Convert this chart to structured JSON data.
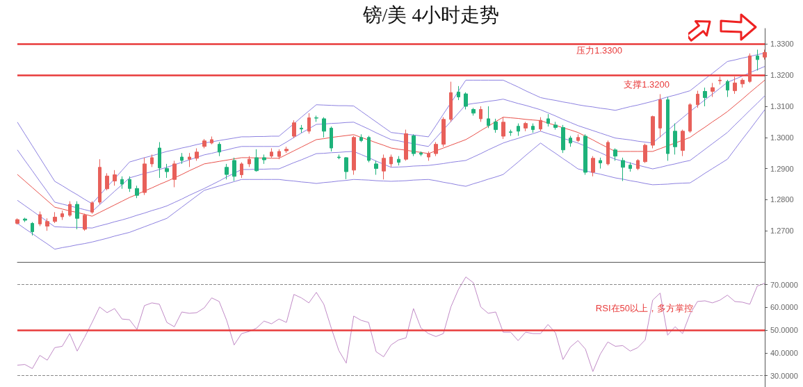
{
  "chart_data": [
    {
      "type": "candlestick",
      "title": "镑/美 4小时走势",
      "tick_labels": "y",
      "marker": "none",
      "categories": [
        null,
        null,
        null,
        null,
        null,
        null,
        null,
        null,
        null,
        null,
        null,
        null,
        null,
        null,
        null,
        null,
        null,
        null,
        null,
        null,
        null,
        null,
        null,
        null,
        null,
        null,
        null,
        null,
        null,
        null,
        null,
        null,
        null,
        null,
        null,
        null,
        null,
        null,
        null,
        null,
        null,
        null,
        null,
        null,
        null,
        null,
        null,
        null,
        null,
        null,
        null,
        null,
        null,
        null,
        null,
        null,
        null,
        null,
        null,
        null,
        null,
        null,
        null,
        null,
        null,
        null,
        null,
        null,
        null,
        null,
        null,
        null,
        null,
        null,
        null,
        null,
        null,
        null,
        null,
        null,
        null,
        null,
        null,
        null,
        null,
        null,
        null,
        null,
        null,
        null,
        null,
        null,
        null,
        null,
        null,
        null,
        null,
        null,
        null,
        null,
        null
      ],
      "ohlc": [
        [
          1.2724,
          1.274,
          1.272,
          1.2736
        ],
        [
          1.2738,
          1.2742,
          1.2728,
          1.2734
        ],
        [
          1.2724,
          1.2728,
          1.2685,
          1.2697
        ],
        [
          1.2722,
          1.2762,
          1.2715,
          1.2752
        ],
        [
          1.2715,
          1.274,
          1.27,
          1.273
        ],
        [
          1.273,
          1.276,
          1.2725,
          1.2744
        ],
        [
          1.2745,
          1.2765,
          1.2735,
          1.2755
        ],
        [
          1.275,
          1.2795,
          1.2745,
          1.2785
        ],
        [
          1.2785,
          1.2795,
          1.2705,
          1.274
        ],
        [
          1.2705,
          1.2755,
          1.27,
          1.275
        ],
        [
          1.276,
          1.2795,
          1.2755,
          1.279
        ],
        [
          1.2792,
          1.293,
          1.2785,
          1.2904
        ],
        [
          1.2835,
          1.2885,
          1.283,
          1.2876
        ],
        [
          1.286,
          1.2895,
          1.2845,
          1.288
        ],
        [
          1.2865,
          1.2875,
          1.2835,
          1.285
        ],
        [
          1.2865,
          1.2875,
          1.2825,
          1.2836
        ],
        [
          1.2836,
          1.2845,
          1.2805,
          1.2814
        ],
        [
          1.2823,
          1.2935,
          1.2815,
          1.2915
        ],
        [
          1.2915,
          1.2945,
          1.2905,
          1.2935
        ],
        [
          1.2966,
          1.2985,
          1.287,
          1.2902
        ],
        [
          1.29,
          1.2915,
          1.287,
          1.289
        ],
        [
          1.2865,
          1.2925,
          1.284,
          1.2915
        ],
        [
          1.2937,
          1.295,
          1.2915,
          1.2926
        ],
        [
          1.293,
          1.295,
          1.2905,
          1.2937
        ],
        [
          1.2933,
          1.2965,
          1.2925,
          1.2953
        ],
        [
          1.2971,
          1.2995,
          1.2965,
          1.2989
        ],
        [
          1.2982,
          1.3003,
          1.2978,
          1.2993
        ],
        [
          1.2978,
          1.2985,
          1.294,
          1.2953
        ],
        [
          1.2904,
          1.2915,
          1.2865,
          1.2881
        ],
        [
          1.2926,
          1.2935,
          1.286,
          1.2875
        ],
        [
          1.288,
          1.292,
          1.287,
          1.2915
        ],
        [
          1.2915,
          1.294,
          1.2905,
          1.293
        ],
        [
          1.2935,
          1.2962,
          1.289,
          1.2893
        ],
        [
          1.2935,
          1.2945,
          1.2915,
          1.2928
        ],
        [
          1.294,
          1.2965,
          1.2935,
          1.2953
        ],
        [
          1.2939,
          1.2962,
          1.293,
          1.2955
        ],
        [
          1.2957,
          1.297,
          1.295,
          1.2962
        ],
        [
          1.3004,
          1.3055,
          1.2998,
          1.3047
        ],
        [
          1.303,
          1.304,
          1.3015,
          1.3027
        ],
        [
          1.302,
          1.3078,
          1.3012,
          1.3063
        ],
        [
          1.3063,
          1.307,
          1.305,
          1.3062
        ],
        [
          1.306,
          1.3065,
          1.3,
          1.302
        ],
        [
          1.303,
          1.3035,
          1.2955,
          1.2966
        ],
        [
          1.2937,
          1.2945,
          1.293,
          1.2935
        ],
        [
          1.2935,
          1.2937,
          1.2866,
          1.289
        ],
        [
          1.2895,
          1.3005,
          1.288,
          1.3
        ],
        [
          1.3,
          1.301,
          1.2985,
          1.299
        ],
        [
          1.3,
          1.3005,
          1.292,
          1.2926
        ],
        [
          1.2915,
          1.2925,
          1.288,
          1.29
        ],
        [
          1.2892,
          1.2945,
          1.2865,
          1.2933
        ],
        [
          1.2915,
          1.2945,
          1.2905,
          1.2937
        ],
        [
          1.293,
          1.294,
          1.291,
          1.292
        ],
        [
          1.293,
          1.3025,
          1.2925,
          1.3012
        ],
        [
          1.3005,
          1.301,
          1.294,
          1.2948
        ],
        [
          1.295,
          1.2955,
          1.294,
          1.2946
        ],
        [
          1.2937,
          1.2955,
          1.2925,
          1.2948
        ],
        [
          1.2948,
          1.2985,
          1.294,
          1.2978
        ],
        [
          1.2978,
          1.3065,
          1.297,
          1.3058
        ],
        [
          1.3058,
          1.3179,
          1.305,
          1.3144
        ],
        [
          1.3146,
          1.3165,
          1.312,
          1.313
        ],
        [
          1.314,
          1.3145,
          1.309,
          1.31
        ],
        [
          1.309,
          1.3095,
          1.307,
          1.3078
        ],
        [
          1.306,
          1.31,
          1.305,
          1.309
        ],
        [
          1.306,
          1.31,
          1.303,
          1.3038
        ],
        [
          1.305,
          1.306,
          1.3015,
          1.3025
        ],
        [
          1.3004,
          1.3065,
          1.2995,
          1.3049
        ],
        [
          1.3018,
          1.3025,
          1.3005,
          1.3016
        ],
        [
          1.3036,
          1.3045,
          1.3005,
          1.302
        ],
        [
          1.303,
          1.305,
          1.302,
          1.3045
        ],
        [
          1.3036,
          1.3045,
          1.3015,
          1.3025
        ],
        [
          1.3027,
          1.3065,
          1.302,
          1.3055
        ],
        [
          1.306,
          1.3075,
          1.3035,
          1.3045
        ],
        [
          1.304,
          1.305,
          1.3025,
          1.3032
        ],
        [
          1.3032,
          1.304,
          1.295,
          1.296
        ],
        [
          1.2998,
          1.3005,
          1.297,
          1.2982
        ],
        [
          1.299,
          1.301,
          1.2985,
          1.3
        ],
        [
          1.3004,
          1.301,
          1.288,
          1.2888
        ],
        [
          1.2888,
          1.294,
          1.2875,
          1.2933
        ],
        [
          1.2926,
          1.2935,
          1.29,
          1.2918
        ],
        [
          1.2915,
          1.299,
          1.291,
          1.2984
        ],
        [
          1.296,
          1.2965,
          1.2925,
          1.294
        ],
        [
          1.2926,
          1.2935,
          1.286,
          1.2904
        ],
        [
          1.2911,
          1.292,
          1.289,
          1.29
        ],
        [
          1.29,
          1.293,
          1.2895,
          1.2926
        ],
        [
          1.2922,
          1.298,
          1.2918,
          1.2975
        ],
        [
          1.2975,
          1.307,
          1.2965,
          1.3067
        ],
        [
          1.303,
          1.3139,
          1.3,
          1.3121
        ],
        [
          1.3121,
          1.313,
          1.2925,
          1.2948
        ],
        [
          1.302,
          1.3045,
          1.2945,
          1.297
        ],
        [
          1.2958,
          1.3025,
          1.294,
          1.302
        ],
        [
          1.302,
          1.311,
          1.3015,
          1.3105
        ],
        [
          1.3105,
          1.315,
          1.3095,
          1.3139
        ],
        [
          1.3148,
          1.316,
          1.31,
          1.3128
        ],
        [
          1.3148,
          1.3175,
          1.313,
          1.316
        ],
        [
          1.3182,
          1.3195,
          1.317,
          1.3184
        ],
        [
          1.318,
          1.3185,
          1.313,
          1.3152
        ],
        [
          1.315,
          1.3195,
          1.314,
          1.3175
        ],
        [
          1.3172,
          1.319,
          1.316,
          1.3184
        ],
        [
          1.318,
          1.327,
          1.3175,
          1.3262
        ],
        [
          1.3262,
          1.3282,
          1.3215,
          1.325
        ],
        [
          1.3258,
          1.3282,
          1.325,
          1.3273
        ]
      ],
      "colors": [
        "#e8605a",
        "#1db27a",
        "#1db27a",
        "#e8605a",
        "#e8605a",
        "#e8605a",
        "#e8605a",
        "#e8605a",
        "#1db27a",
        "#e8605a",
        "#e8605a",
        "#e8605a",
        "#e8605a",
        "#e8605a",
        "#1db27a",
        "#1db27a",
        "#1db27a",
        "#e8605a",
        "#e8605a",
        "#1db27a",
        "#1db27a",
        "#e8605a",
        "#1db27a",
        "#e8605a",
        "#e8605a",
        "#e8605a",
        "#e8605a",
        "#1db27a",
        "#1db27a",
        "#1db27a",
        "#e8605a",
        "#e8605a",
        "#1db27a",
        "#1db27a",
        "#e8605a",
        "#e8605a",
        "#e8605a",
        "#e8605a",
        "#1db27a",
        "#e8605a",
        "#1db27a",
        "#1db27a",
        "#1db27a",
        "#1db27a",
        "#1db27a",
        "#e8605a",
        "#1db27a",
        "#1db27a",
        "#1db27a",
        "#e8605a",
        "#e8605a",
        "#1db27a",
        "#e8605a",
        "#1db27a",
        "#1db27a",
        "#e8605a",
        "#e8605a",
        "#e8605a",
        "#e8605a",
        "#1db27a",
        "#1db27a",
        "#1db27a",
        "#e8605a",
        "#1db27a",
        "#1db27a",
        "#e8605a",
        "#1db27a",
        "#1db27a",
        "#e8605a",
        "#1db27a",
        "#e8605a",
        "#1db27a",
        "#1db27a",
        "#1db27a",
        "#1db27a",
        "#e8605a",
        "#1db27a",
        "#e8605a",
        "#1db27a",
        "#e8605a",
        "#1db27a",
        "#1db27a",
        "#1db27a",
        "#e8605a",
        "#e8605a",
        "#e8605a",
        "#e8605a",
        "#1db27a",
        "#1db27a",
        "#e8605a",
        "#e8605a",
        "#e8605a",
        "#1db27a",
        "#e8605a",
        "#e8605a",
        "#1db27a",
        "#e8605a",
        "#e8605a",
        "#e8605a",
        "#1db27a",
        "#e8605a"
      ],
      "series": [
        {
          "type": "line",
          "color": "#8c80e0",
          "values": [
            1.3049,
            1.3011,
            1.2973,
            1.2935,
            1.2897,
            1.2859,
            1.2845,
            1.283,
            1.2816,
            1.2801,
            1.2787,
            1.2814,
            1.2841,
            1.2867,
            1.2894,
            1.2921,
            1.2928,
            1.2935,
            1.2941,
            1.2948,
            1.2955,
            1.296,
            1.2966,
            1.2971,
            1.2977,
            1.2982,
            1.2986,
            1.299,
            1.2994,
            1.2998,
            1.3002,
            1.3002,
            1.3003,
            1.3003,
            1.3004,
            1.3004,
            1.3024,
            1.3044,
            1.3065,
            1.3085,
            1.3105,
            1.3104,
            1.3103,
            1.3102,
            1.3102,
            1.3101,
            1.3084,
            1.3067,
            1.305,
            1.3033,
            1.3016,
            1.3013,
            1.301,
            1.3008,
            1.3005,
            1.3002,
            1.3038,
            1.3075,
            1.3111,
            1.3148,
            1.3184,
            1.3184,
            1.3184,
            1.3184,
            1.3184,
            1.3184,
            1.3173,
            1.3162,
            1.315,
            1.3139,
            1.3128,
            1.3123,
            1.3119,
            1.3114,
            1.311,
            1.3105,
            1.3101,
            1.3098,
            1.3094,
            1.3091,
            1.3087,
            1.3093,
            1.3099,
            1.3104,
            1.311,
            1.3116,
            1.3123,
            1.313,
            1.3136,
            1.3143,
            1.315,
            1.3169,
            1.3188,
            1.3206,
            1.3225,
            1.3244,
            1.3249,
            1.3255,
            1.326,
            1.3266,
            1.3271
          ]
        },
        {
          "type": "line",
          "color": "#8c80e0",
          "values": [
            1.296,
            1.2926,
            1.2893,
            1.2859,
            1.2826,
            1.2792,
            1.2786,
            1.278,
            1.2774,
            1.2768,
            1.2762,
            1.2784,
            1.2805,
            1.2827,
            1.2848,
            1.287,
            1.2877,
            1.2884,
            1.289,
            1.2897,
            1.2904,
            1.2912,
            1.292,
            1.2928,
            1.2936,
            1.2944,
            1.2949,
            1.2955,
            1.296,
            1.2966,
            1.2971,
            1.2971,
            1.2971,
            1.2971,
            1.2971,
            1.2971,
            1.2985,
            1.3,
            1.3014,
            1.3028,
            1.3042,
            1.3043,
            1.3045,
            1.3046,
            1.3048,
            1.3049,
            1.3038,
            1.3027,
            1.3015,
            1.3004,
            1.2993,
            1.2989,
            1.2984,
            1.298,
            1.2975,
            1.2971,
            1.2998,
            1.3025,
            1.3051,
            1.3078,
            1.3105,
            1.3109,
            1.3112,
            1.3116,
            1.3119,
            1.3123,
            1.3116,
            1.3109,
            1.3103,
            1.3096,
            1.3089,
            1.3079,
            1.3069,
            1.3058,
            1.3048,
            1.3038,
            1.303,
            1.3022,
            1.3014,
            1.3006,
            1.2998,
            1.2995,
            1.2992,
            1.2988,
            1.2985,
            1.2982,
            1.3002,
            1.3022,
            1.3043,
            1.3063,
            1.3083,
            1.3102,
            1.3121,
            1.3139,
            1.3158,
            1.3177,
            1.3187,
            1.3197,
            1.3208,
            1.3218,
            1.3228
          ]
        },
        {
          "type": "line",
          "color": "#e8504a",
          "values": [
            1.2881,
            1.286,
            1.2839,
            1.2818,
            1.2797,
            1.2776,
            1.277,
            1.2764,
            1.2759,
            1.2753,
            1.2747,
            1.2759,
            1.2771,
            1.2783,
            1.2795,
            1.2807,
            1.2817,
            1.2828,
            1.2838,
            1.2849,
            1.2859,
            1.287,
            1.2881,
            1.2893,
            1.2904,
            1.2915,
            1.2919,
            1.2923,
            1.2927,
            1.2931,
            1.2935,
            1.2935,
            1.2934,
            1.2934,
            1.2933,
            1.2933,
            1.2945,
            1.2957,
            1.2969,
            1.2981,
            1.2993,
            1.2996,
            1.3,
            1.3003,
            1.3006,
            1.3009,
            1.3,
            1.2992,
            1.2983,
            1.2975,
            1.2966,
            1.2962,
            1.2959,
            1.2955,
            1.2952,
            1.2948,
            1.2957,
            1.2966,
            1.2975,
            1.2984,
            1.2993,
            1.3007,
            1.3022,
            1.3036,
            1.3051,
            1.3065,
            1.3063,
            1.3061,
            1.3058,
            1.3056,
            1.3054,
            1.3046,
            1.3039,
            1.3031,
            1.3024,
            1.3016,
            1.3004,
            1.2992,
            1.2979,
            1.2967,
            1.2955,
            1.2955,
            1.2955,
            1.2955,
            1.2955,
            1.2955,
            1.2964,
            1.2973,
            1.2982,
            1.2991,
            1.3,
            1.3017,
            1.3033,
            1.305,
            1.3066,
            1.3083,
            1.3103,
            1.3123,
            1.3144,
            1.3164,
            1.3184
          ]
        },
        {
          "type": "line",
          "color": "#8c80e0",
          "values": [
            1.2798,
            1.2781,
            1.2764,
            1.2747,
            1.273,
            1.2713,
            1.2712,
            1.2711,
            1.2711,
            1.271,
            1.2709,
            1.2716,
            1.2722,
            1.2729,
            1.2735,
            1.2742,
            1.275,
            1.2757,
            1.2765,
            1.2772,
            1.278,
            1.2791,
            1.2802,
            1.2814,
            1.2825,
            1.2836,
            1.2848,
            1.286,
            1.2873,
            1.2885,
            1.2897,
            1.2897,
            1.2898,
            1.2898,
            1.2899,
            1.2899,
            1.2909,
            1.2919,
            1.2928,
            1.2938,
            1.2948,
            1.2949,
            1.2951,
            1.2952,
            1.2954,
            1.2955,
            1.2945,
            1.2935,
            1.2924,
            1.2914,
            1.2904,
            1.2905,
            1.2906,
            1.2908,
            1.2909,
            1.291,
            1.2913,
            1.2916,
            1.292,
            1.2923,
            1.2926,
            1.2937,
            1.2948,
            1.296,
            1.2971,
            1.2982,
            1.299,
            1.2997,
            1.3005,
            1.3012,
            1.302,
            1.3012,
            1.3005,
            1.2997,
            1.299,
            1.2982,
            1.2972,
            1.2961,
            1.2951,
            1.294,
            1.293,
            1.2924,
            1.2918,
            1.2911,
            1.2905,
            1.2899,
            1.2904,
            1.291,
            1.2915,
            1.2921,
            1.2926,
            1.2944,
            1.2962,
            1.298,
            1.2998,
            1.3016,
            1.304,
            1.3063,
            1.3087,
            1.311,
            1.3134
          ]
        },
        {
          "type": "line",
          "color": "#8c80e0",
          "values": [
            1.2724,
            1.2707,
            1.2691,
            1.2674,
            1.2658,
            1.2641,
            1.2646,
            1.265,
            1.2655,
            1.2659,
            1.2664,
            1.267,
            1.2676,
            1.2683,
            1.2689,
            1.2695,
            1.2704,
            1.2713,
            1.2722,
            1.2731,
            1.274,
            1.2758,
            1.2776,
            1.2794,
            1.2812,
            1.283,
            1.2837,
            1.2844,
            1.2851,
            1.2858,
            1.2865,
            1.2865,
            1.2865,
            1.2865,
            1.2865,
            1.2865,
            1.2862,
            1.286,
            1.2857,
            1.2855,
            1.2852,
            1.2855,
            1.2857,
            1.286,
            1.2862,
            1.2865,
            1.2864,
            1.2863,
            1.2861,
            1.286,
            1.2859,
            1.286,
            1.2861,
            1.2863,
            1.2864,
            1.2865,
            1.2861,
            1.2856,
            1.2852,
            1.2847,
            1.2843,
            1.2851,
            1.2858,
            1.2866,
            1.2873,
            1.2881,
            1.2901,
            1.2921,
            1.2942,
            1.2962,
            1.2982,
            1.2965,
            1.2949,
            1.2932,
            1.2916,
            1.2899,
            1.2893,
            1.2887,
            1.2882,
            1.2876,
            1.287,
            1.2866,
            1.2861,
            1.2857,
            1.2852,
            1.2848,
            1.2849,
            1.285,
            1.2852,
            1.2853,
            1.2854,
            1.2869,
            1.2885,
            1.29,
            1.2915,
            1.293,
            1.2962,
            1.2994,
            1.3025,
            1.3057,
            1.3089
          ]
        }
      ],
      "ylim": [
        1.26,
        1.335
      ],
      "yticks": [
        {
          "value": 1.27,
          "label": "1.2700"
        },
        {
          "value": 1.28,
          "label": "1.2800"
        },
        {
          "value": 1.29,
          "label": "1.2900"
        },
        {
          "value": 1.3,
          "label": "1.3000"
        },
        {
          "value": 1.31,
          "label": "1.3100"
        },
        {
          "value": 1.32,
          "label": "1.3200"
        },
        {
          "value": 1.33,
          "label": "1.3300"
        }
      ],
      "ref_lines": [
        {
          "axis": "y",
          "value": 1.33,
          "label": "压力1.3300",
          "color": "#e83a3a"
        },
        {
          "axis": "y",
          "value": 1.32,
          "label": "支撑1.3200",
          "color": "#e83a3a"
        }
      ]
    },
    {
      "type": "line",
      "tick_labels": "y",
      "marker": "none",
      "categories": [
        null,
        null,
        null,
        null,
        null,
        null,
        null,
        null,
        null,
        null,
        null,
        null,
        null,
        null,
        null,
        null,
        null,
        null,
        null,
        null,
        null,
        null,
        null,
        null,
        null,
        null,
        null,
        null,
        null,
        null,
        null,
        null,
        null,
        null,
        null,
        null,
        null,
        null,
        null,
        null,
        null,
        null,
        null,
        null,
        null,
        null,
        null,
        null,
        null,
        null,
        null,
        null,
        null,
        null,
        null,
        null,
        null,
        null,
        null,
        null,
        null,
        null,
        null,
        null,
        null,
        null,
        null,
        null,
        null,
        null,
        null,
        null,
        null,
        null,
        null,
        null,
        null,
        null,
        null,
        null,
        null,
        null,
        null,
        null,
        null,
        null,
        null,
        null,
        null,
        null,
        null,
        null,
        null,
        null,
        null,
        null,
        null,
        null,
        null,
        null,
        null
      ],
      "series": [
        {
          "color": "#c08ac6",
          "values": [
            34.6,
            34.9,
            33.1,
            38.9,
            36.8,
            42.3,
            42.9,
            48.5,
            40.8,
            46.9,
            53.4,
            60.2,
            57.7,
            59.5,
            54.9,
            54.6,
            50.3,
            60.8,
            62.0,
            61.4,
            53.4,
            51.5,
            58.0,
            57.4,
            57.7,
            59.8,
            64.2,
            62.6,
            54.3,
            43.5,
            48.5,
            49.4,
            50.9,
            54.0,
            52.8,
            54.9,
            53.4,
            65.7,
            64.2,
            62.0,
            66.6,
            61.4,
            50.9,
            41.1,
            35.5,
            56.2,
            54.3,
            53.4,
            40.5,
            38.3,
            43.5,
            45.7,
            46.6,
            59.5,
            50.9,
            48.5,
            47.2,
            48.5,
            60.2,
            67.8,
            73.4,
            70.9,
            60.2,
            57.4,
            58.0,
            49.1,
            49.1,
            45.4,
            49.1,
            48.5,
            48.5,
            52.5,
            48.8,
            37.1,
            42.6,
            45.4,
            41.7,
            31.8,
            39.5,
            44.8,
            42.9,
            43.2,
            40.8,
            42.3,
            45.7,
            63.2,
            66.3,
            47.8,
            51.5,
            48.5,
            57.1,
            62.6,
            62.9,
            62.0,
            63.2,
            65.4,
            62.6,
            62.3,
            61.4,
            69.4,
            70.6
          ]
        }
      ],
      "ylim": [
        25,
        80
      ],
      "yticks": [
        {
          "value": 30,
          "label": "30.0000"
        },
        {
          "value": 40,
          "label": "40.0000"
        },
        {
          "value": 50,
          "label": "50.0000"
        },
        {
          "value": 60,
          "label": "60.0000"
        },
        {
          "value": 70,
          "label": "70.0000"
        }
      ],
      "ref_lines": [
        {
          "axis": "y",
          "value": 70,
          "color": "#888888",
          "line_style": "dashed"
        },
        {
          "axis": "y",
          "value": 30,
          "color": "#888888",
          "line_style": "dashed"
        },
        {
          "axis": "y",
          "value": 50,
          "label": "RSI在50以上，多方掌控",
          "color": "#e83a3a"
        }
      ]
    }
  ]
}
